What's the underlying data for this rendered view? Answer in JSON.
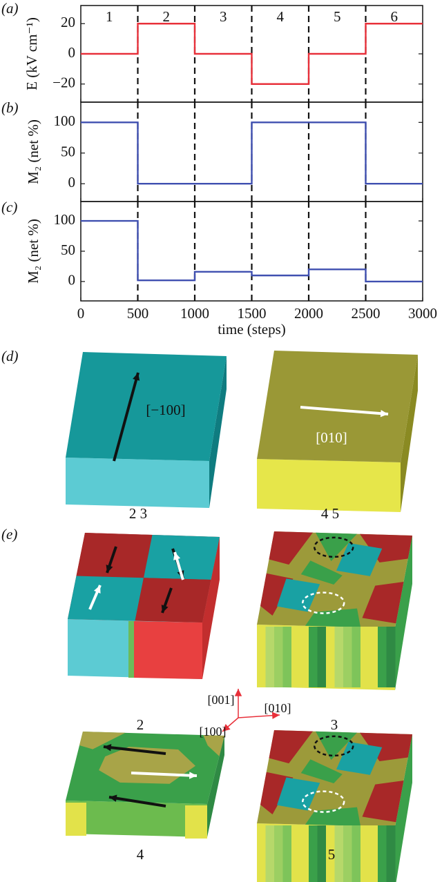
{
  "chart_data": [
    {
      "type": "line",
      "label": "(a)",
      "ylabel": "E (kV cm⁻¹)",
      "color": "#e8303a",
      "segment_labels": [
        "1",
        "2",
        "3",
        "4",
        "5",
        "6"
      ],
      "x": [
        0,
        500,
        500,
        1000,
        1000,
        1500,
        1500,
        2000,
        2000,
        2500,
        2500,
        3000
      ],
      "values": [
        0,
        0,
        20,
        20,
        0,
        0,
        -20,
        -20,
        0,
        0,
        20,
        20
      ],
      "xlim": [
        0,
        3000
      ],
      "xticks": [
        0,
        500,
        1000,
        1500,
        2000,
        2500,
        3000
      ],
      "ylim": [
        -32,
        32
      ],
      "yticks": [
        {
          "value": -20,
          "label": "−20"
        },
        0,
        20
      ]
    },
    {
      "type": "line",
      "label": "(b)",
      "ylabel": "M₂ (net %)",
      "color": "#3f4fb0",
      "x": [
        0,
        500,
        500,
        1000,
        1000,
        1500,
        1500,
        2000,
        2000,
        2500,
        2500,
        3000
      ],
      "values": [
        100,
        100,
        0,
        0,
        0,
        0,
        100,
        100,
        100,
        100,
        0,
        0
      ],
      "xlim": [
        0,
        3000
      ],
      "xticks": [
        0,
        500,
        1000,
        1500,
        2000,
        2500,
        3000
      ],
      "ylim": [
        -29,
        133
      ],
      "yticks": [
        0,
        50,
        100
      ]
    },
    {
      "type": "line",
      "label": "(c)",
      "ylabel": "M₂ (net %)",
      "xlabel": "time (steps)",
      "color": "#3f4fb0",
      "x": [
        0,
        500,
        500,
        1000,
        1000,
        1500,
        1500,
        2000,
        2000,
        2500,
        2500,
        3000
      ],
      "values": [
        100,
        100,
        2,
        2,
        16,
        16,
        10,
        10,
        20,
        20,
        0,
        0
      ],
      "xlim": [
        0,
        3000
      ],
      "xticks": [
        0,
        500,
        1000,
        1500,
        2000,
        2500,
        3000
      ],
      "ylim": [
        -32,
        132
      ],
      "yticks": [
        0,
        50,
        100
      ]
    }
  ],
  "figure": {
    "d": {
      "label": "(d)",
      "arrow_left": "[−100]",
      "arrow_right": "[010]",
      "caption_left": "2   3",
      "caption_right": "4   5"
    },
    "e": {
      "label": "(e)",
      "captions": [
        "2",
        "3",
        "4",
        "5"
      ],
      "axes": {
        "z": "[001]",
        "y": "[010]",
        "x": "[100]"
      }
    }
  }
}
